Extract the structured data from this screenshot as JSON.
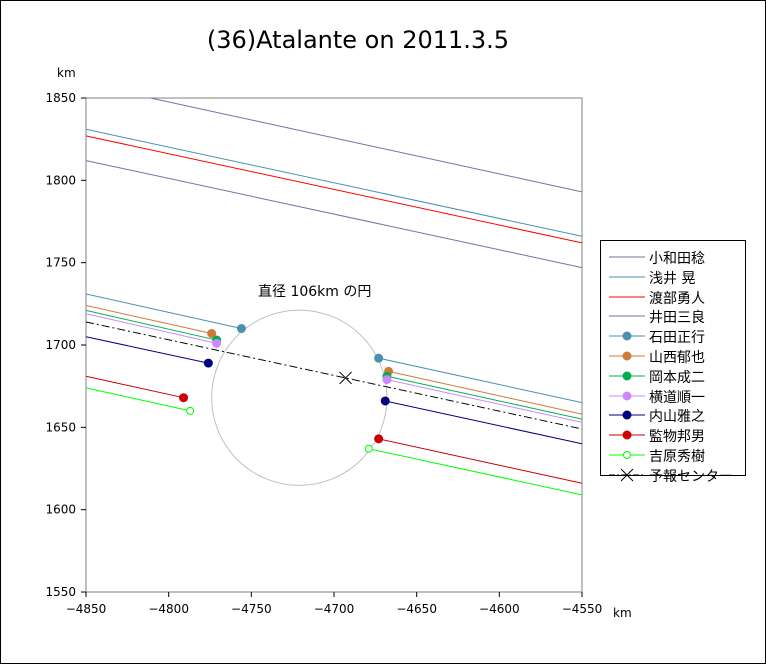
{
  "chart_data": {
    "type": "line",
    "title": "(36)Atalante on 2011.3.5",
    "xlabel": "km",
    "ylabel": "km",
    "xlim": [
      -4850,
      -4550
    ],
    "ylim": [
      1550,
      1850
    ],
    "xticks": [
      -4850,
      -4800,
      -4750,
      -4700,
      -4650,
      -4600,
      -4550
    ],
    "yticks": [
      1550,
      1600,
      1650,
      1700,
      1750,
      1800,
      1850
    ],
    "grid": false,
    "legend": "right",
    "annotation": {
      "text": "直径 106km の円",
      "circle": {
        "cx": -4721,
        "cy": 1668,
        "r": 53,
        "color": "#c0c0c0"
      }
    },
    "series": [
      {
        "name": "小和田稔",
        "color": "#7a6ea8",
        "marker": "none",
        "segments": [
          [
            [
              -4811,
              1850
            ],
            [
              -4550,
              1793
            ]
          ]
        ]
      },
      {
        "name": "浅井 晃",
        "color": "#4a90b0",
        "marker": "none",
        "segments": [
          [
            [
              -4850,
              1831
            ],
            [
              -4550,
              1766
            ]
          ]
        ]
      },
      {
        "name": "渡部勇人",
        "color": "#ff0000",
        "marker": "none",
        "segments": [
          [
            [
              -4850,
              1827
            ],
            [
              -4550,
              1762
            ]
          ]
        ]
      },
      {
        "name": "井田三良",
        "color": "#7a6ea8",
        "marker": "none",
        "segments": [
          [
            [
              -4850,
              1812
            ],
            [
              -4550,
              1747
            ]
          ]
        ]
      },
      {
        "name": "石田正行",
        "color": "#4a90b0",
        "marker": "filled",
        "segments": [
          [
            [
              -4850,
              1731
            ],
            [
              -4756,
              1710
            ]
          ],
          [
            [
              -4673,
              1692
            ],
            [
              -4550,
              1665
            ]
          ]
        ]
      },
      {
        "name": "山西郁也",
        "color": "#d07a3a",
        "marker": "filled",
        "segments": [
          [
            [
              -4850,
              1724
            ],
            [
              -4774,
              1707
            ]
          ],
          [
            [
              -4667,
              1684
            ],
            [
              -4550,
              1658
            ]
          ]
        ]
      },
      {
        "name": "岡本成二",
        "color": "#00b050",
        "marker": "filled",
        "segments": [
          [
            [
              -4850,
              1721
            ],
            [
              -4771,
              1703
            ]
          ],
          [
            [
              -4668,
              1681
            ],
            [
              -4550,
              1655
            ]
          ]
        ]
      },
      {
        "name": "横道順一",
        "color": "#cc88ff",
        "marker": "filled",
        "segments": [
          [
            [
              -4850,
              1719
            ],
            [
              -4771,
              1701
            ]
          ],
          [
            [
              -4668,
              1679
            ],
            [
              -4550,
              1653
            ]
          ]
        ]
      },
      {
        "name": "内山雅之",
        "color": "#000080",
        "marker": "filled",
        "segments": [
          [
            [
              -4850,
              1705
            ],
            [
              -4776,
              1689
            ]
          ],
          [
            [
              -4669,
              1666
            ],
            [
              -4550,
              1640
            ]
          ]
        ]
      },
      {
        "name": "監物邦男",
        "color": "#cc0000",
        "marker": "filled",
        "segments": [
          [
            [
              -4850,
              1681
            ],
            [
              -4791,
              1668
            ]
          ],
          [
            [
              -4673,
              1643
            ],
            [
              -4550,
              1616
            ]
          ]
        ]
      },
      {
        "name": "吉原秀樹",
        "color": "#00ff00",
        "marker": "open",
        "segments": [
          [
            [
              -4850,
              1674
            ],
            [
              -4787,
              1660
            ]
          ],
          [
            [
              -4679,
              1637
            ],
            [
              -4550,
              1609
            ]
          ]
        ]
      },
      {
        "name": "予報センター",
        "color": "#000000",
        "marker": "cross",
        "dash": true,
        "segments": [
          [
            [
              -4850,
              1714
            ],
            [
              -4550,
              1649
            ]
          ]
        ],
        "center": [
          -4693,
          1680
        ]
      }
    ]
  }
}
